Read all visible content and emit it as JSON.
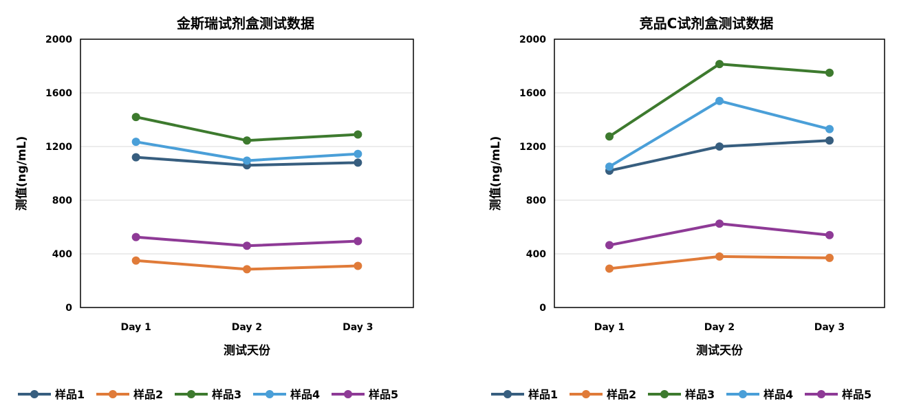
{
  "chart_data": [
    {
      "type": "line",
      "title": "金斯瑞试剂盒测试数据",
      "xlabel": "测试天份",
      "ylabel": "测值(ng/mL)",
      "categories": [
        "Day 1",
        "Day 2",
        "Day 3"
      ],
      "ylim": [
        0,
        2000
      ],
      "yticks": [
        0,
        400,
        800,
        1200,
        1600,
        2000
      ],
      "grid": true,
      "legend": "bottom",
      "series": [
        {
          "name": "样品1",
          "color": "#375e7f",
          "values": [
            1120,
            1060,
            1080
          ]
        },
        {
          "name": "样品2",
          "color": "#e07b39",
          "values": [
            350,
            285,
            310
          ]
        },
        {
          "name": "样品3",
          "color": "#3d7a2e",
          "values": [
            1420,
            1245,
            1290
          ]
        },
        {
          "name": "样品4",
          "color": "#4a9fd8",
          "values": [
            1235,
            1095,
            1145
          ]
        },
        {
          "name": "样品5",
          "color": "#8e3a96",
          "values": [
            525,
            460,
            495
          ]
        }
      ]
    },
    {
      "type": "line",
      "title": "竞品C试剂盒测试数据",
      "xlabel": "测试天份",
      "ylabel": "测值(ng/mL)",
      "categories": [
        "Day 1",
        "Day 2",
        "Day 3"
      ],
      "ylim": [
        0,
        2000
      ],
      "yticks": [
        0,
        400,
        800,
        1200,
        1600,
        2000
      ],
      "grid": true,
      "legend": "bottom",
      "series": [
        {
          "name": "样品1",
          "color": "#375e7f",
          "values": [
            1020,
            1200,
            1245
          ]
        },
        {
          "name": "样品2",
          "color": "#e07b39",
          "values": [
            290,
            380,
            370
          ]
        },
        {
          "name": "样品3",
          "color": "#3d7a2e",
          "values": [
            1275,
            1815,
            1750
          ]
        },
        {
          "name": "样品4",
          "color": "#4a9fd8",
          "values": [
            1050,
            1540,
            1330
          ]
        },
        {
          "name": "样品5",
          "color": "#8e3a96",
          "values": [
            465,
            625,
            540
          ]
        }
      ]
    }
  ]
}
